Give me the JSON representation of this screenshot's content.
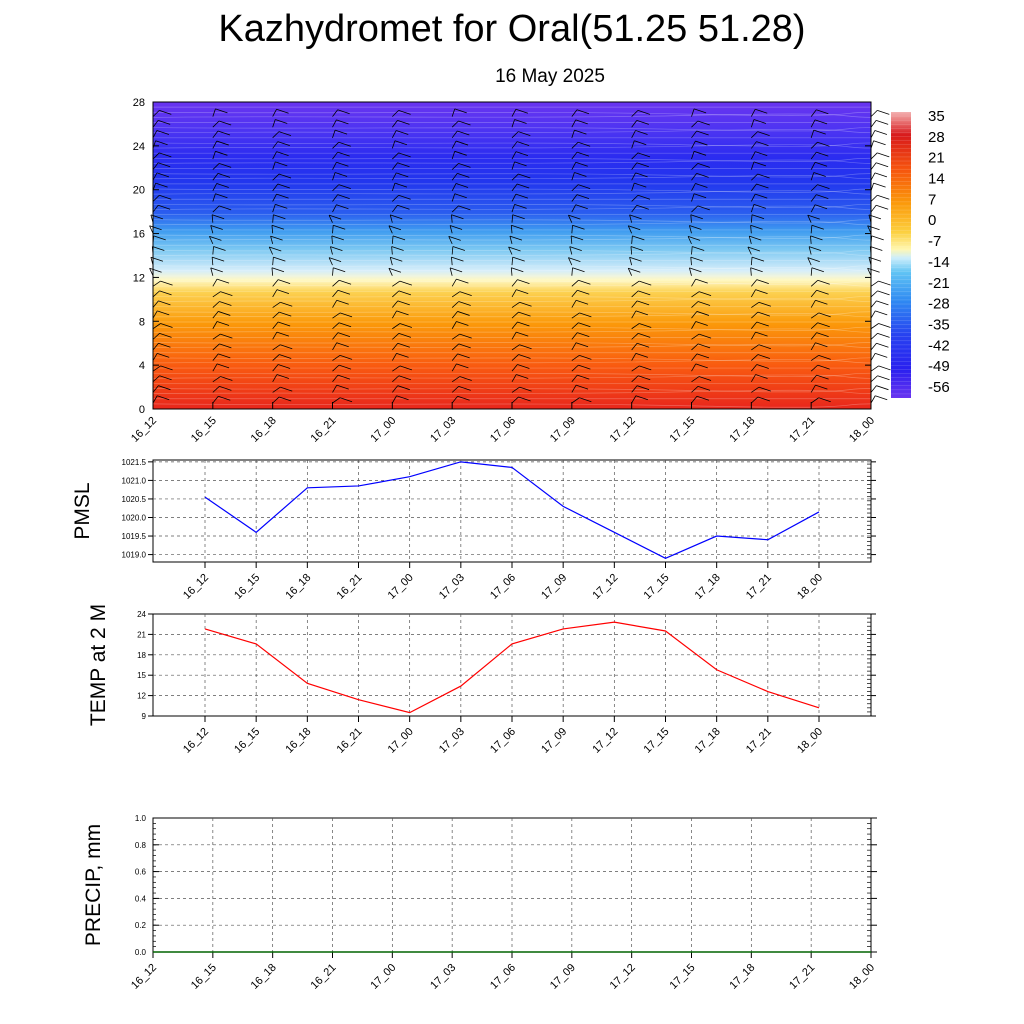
{
  "title": "Kazhydromet for Oral(51.25 51.28)",
  "subtitle": "16 May 2025",
  "time_labels": [
    "16_12",
    "16_15",
    "16_18",
    "16_21",
    "17_00",
    "17_03",
    "17_06",
    "17_09",
    "17_12",
    "17_15",
    "17_18",
    "17_21",
    "18_00"
  ],
  "colors": {
    "pmsl_line": "#0000ff",
    "temp_line": "#ff0000",
    "precip_line": "#006400",
    "grid": "#555555"
  },
  "chart_data": [
    {
      "type": "heatmap",
      "description": "time-height cross section with temperature contours and wind barbs",
      "y_ticks": [
        0,
        4,
        8,
        12,
        16,
        20,
        24,
        28
      ],
      "ylim": [
        0,
        28
      ],
      "colorbar_labels": [
        "35",
        "28",
        "21",
        "14",
        "7",
        "0",
        "-7",
        "-14",
        "-21",
        "-28",
        "-35",
        "-42",
        "-49",
        "-56"
      ],
      "colorbar_range": [
        -60,
        38
      ]
    },
    {
      "type": "line",
      "ylabel": "PMSL",
      "ylim": [
        1018.8,
        1021.55
      ],
      "y_ticks": [
        "1019.0",
        "1019.5",
        "1020.0",
        "1020.5",
        "1021.0",
        "1021.5"
      ],
      "x": [
        "16_12",
        "16_15",
        "16_18",
        "16_21",
        "17_00",
        "17_03",
        "17_06",
        "17_09",
        "17_12",
        "17_15",
        "17_18",
        "17_21",
        "18_00"
      ],
      "values": [
        1020.55,
        1019.6,
        1020.8,
        1020.85,
        1021.1,
        1021.5,
        1021.35,
        1020.3,
        1019.6,
        1018.9,
        1019.5,
        1019.4,
        1020.15
      ]
    },
    {
      "type": "line",
      "ylabel": "TEMP at 2 M",
      "ylim": [
        9,
        24
      ],
      "y_ticks": [
        "9",
        "12",
        "15",
        "18",
        "21",
        "24"
      ],
      "x": [
        "16_12",
        "16_15",
        "16_18",
        "16_21",
        "17_00",
        "17_03",
        "17_06",
        "17_09",
        "17_12",
        "17_15",
        "17_18",
        "17_21",
        "18_00"
      ],
      "values": [
        21.8,
        19.6,
        13.8,
        11.4,
        9.5,
        13.4,
        19.6,
        21.8,
        22.8,
        21.5,
        15.8,
        12.6,
        10.2
      ]
    },
    {
      "type": "line",
      "ylabel": "PRECIP, mm",
      "ylim": [
        0,
        1
      ],
      "y_ticks": [
        "0.0",
        "0.2",
        "0.4",
        "0.6",
        "0.8",
        "1.0"
      ],
      "x": [
        "16_12",
        "16_15",
        "16_18",
        "16_21",
        "17_00",
        "17_03",
        "17_06",
        "17_09",
        "17_12",
        "17_15",
        "17_18",
        "17_21",
        "18_00"
      ],
      "values": [
        0,
        0,
        0,
        0,
        0,
        0,
        0,
        0,
        0,
        0,
        0,
        0,
        0
      ]
    }
  ]
}
